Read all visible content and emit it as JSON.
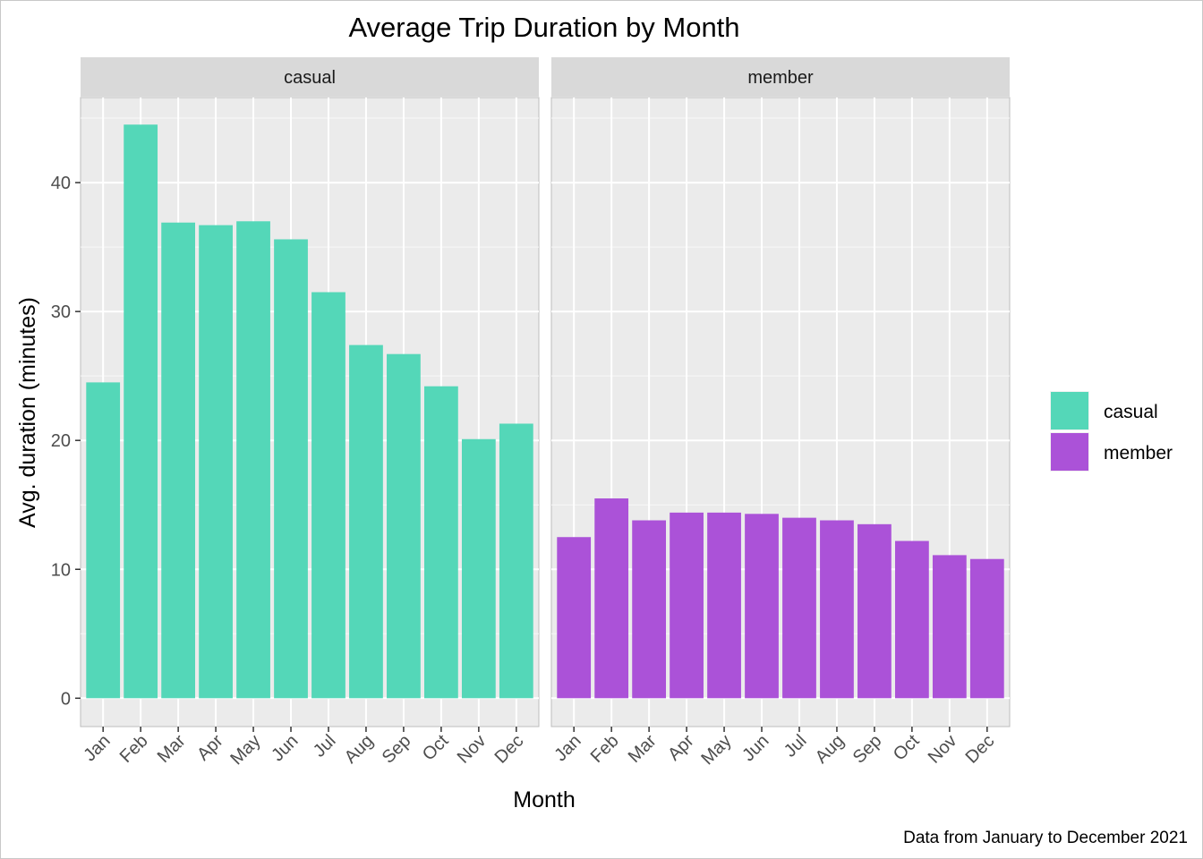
{
  "chart_data": {
    "type": "bar",
    "title": "Average Trip Duration by Month",
    "xlabel": "Month",
    "ylabel": "Avg. duration (minutes)",
    "caption": "Data from January to December 2021",
    "categories": [
      "Jan",
      "Feb",
      "Mar",
      "Apr",
      "May",
      "Jun",
      "Jul",
      "Aug",
      "Sep",
      "Oct",
      "Nov",
      "Dec"
    ],
    "ylim": [
      -2.2,
      46.6
    ],
    "yticks": [
      0,
      10,
      20,
      30,
      40
    ],
    "grid": true,
    "legend_position": "right",
    "facets": [
      {
        "label": "casual",
        "series": "casual",
        "color": "#54d7b8",
        "values": [
          24.5,
          44.5,
          36.9,
          36.7,
          37.0,
          35.6,
          31.5,
          27.4,
          26.7,
          24.2,
          20.1,
          21.3
        ]
      },
      {
        "label": "member",
        "series": "member",
        "color": "#ab52d8",
        "values": [
          12.5,
          15.5,
          13.8,
          14.4,
          14.4,
          14.3,
          14.0,
          13.8,
          13.5,
          12.2,
          11.1,
          10.8
        ]
      }
    ],
    "legend": [
      {
        "name": "casual",
        "color": "#54d7b8"
      },
      {
        "name": "member",
        "color": "#ab52d8"
      }
    ]
  }
}
